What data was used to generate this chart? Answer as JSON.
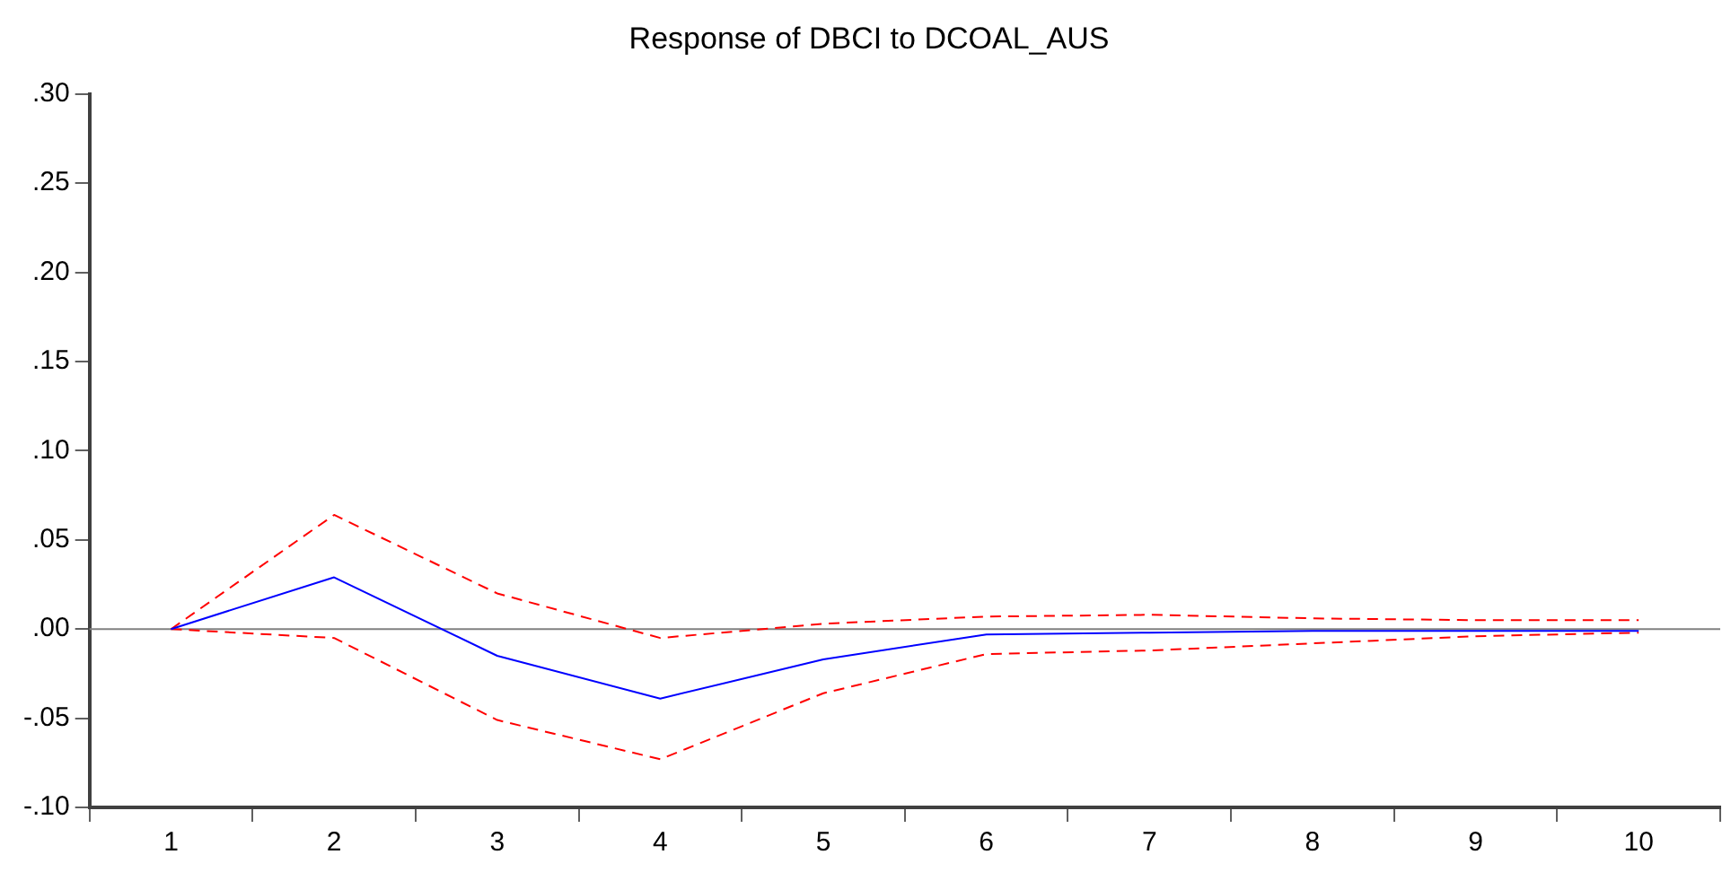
{
  "chart_data": {
    "type": "line",
    "title": "Response of DBCI to DCOAL_AUS",
    "categories": [
      "1",
      "2",
      "3",
      "4",
      "5",
      "6",
      "7",
      "8",
      "9",
      "10"
    ],
    "series": [
      {
        "color": "#0000ff",
        "line_style": "solid",
        "values": [
          0,
          0.029,
          -0.015,
          -0.039,
          -0.017,
          -0.003,
          -0.002,
          -0.001,
          -0.001,
          -0.001
        ]
      },
      {
        "color": "#ff0000",
        "line_style": "dashed",
        "values": [
          0,
          0.064,
          0.02,
          -0.005,
          0.003,
          0.007,
          0.008,
          0.006,
          0.005,
          0.005
        ]
      },
      {
        "color": "#ff0000",
        "line_style": "dashed",
        "values": [
          0,
          -0.005,
          -0.051,
          -0.073,
          -0.036,
          -0.014,
          -0.012,
          -0.008,
          -0.004,
          -0.002
        ]
      }
    ],
    "ylim": [
      -0.1,
      0.3
    ],
    "yticks": [
      {
        "value": -0.1,
        "label": "-.10"
      },
      {
        "value": -0.05,
        "label": "-.05"
      },
      {
        "value": 0,
        "label": ".00"
      },
      {
        "value": 0.05,
        "label": ".05"
      },
      {
        "value": 0.1,
        "label": ".10"
      },
      {
        "value": 0.15,
        "label": ".15"
      },
      {
        "value": 0.2,
        "label": ".20"
      },
      {
        "value": 0.25,
        "label": ".25"
      },
      {
        "value": 0.3,
        "label": ".30"
      }
    ],
    "ref_lines": [
      {
        "axis": "y",
        "value": 0,
        "color": "#808080"
      }
    ],
    "grid": false,
    "legend": false,
    "marker": "none"
  }
}
